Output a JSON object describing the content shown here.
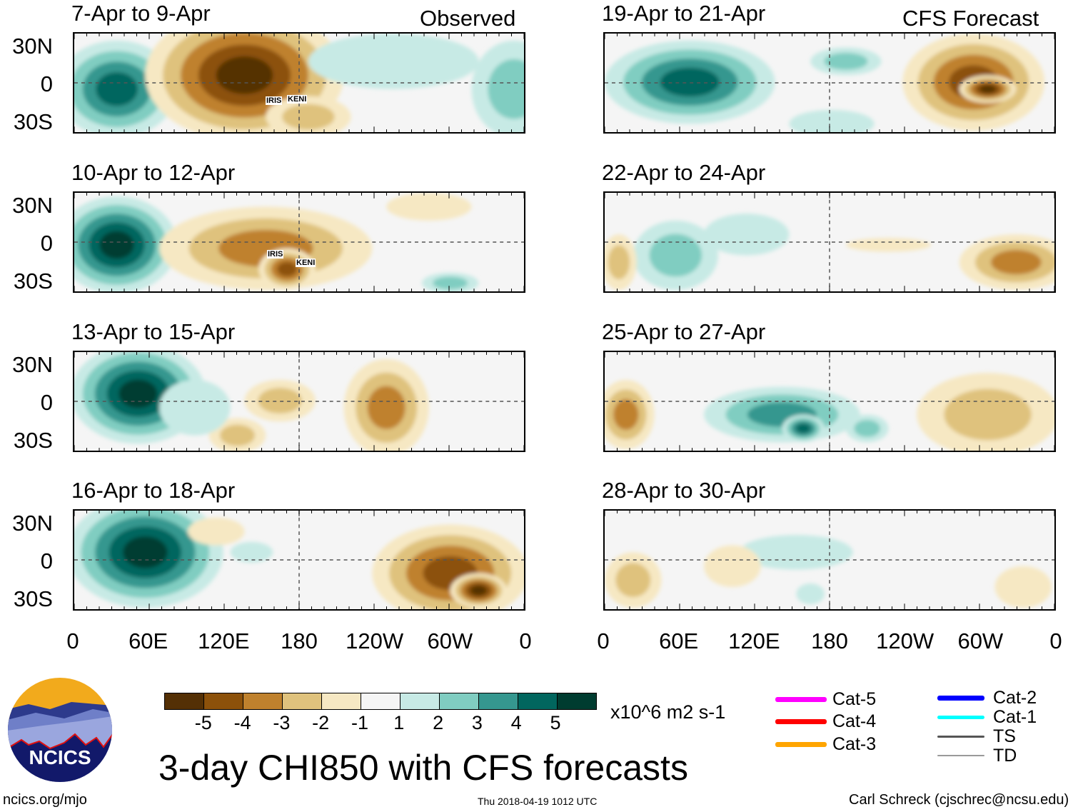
{
  "figure": {
    "title": "3-day CHI850 with CFS forecasts",
    "left_tag": "Observed",
    "right_tag": "CFS Forecast",
    "footer_left": "ncics.org/mjo",
    "footer_center": "Thu 2018-04-19 1012 UTC",
    "footer_right": "Carl Schreck (cjschrec@ncsu.edu)",
    "logo_text": "NCICS"
  },
  "lat_labels": [
    "30N",
    "0",
    "30S"
  ],
  "lon_labels": [
    "0",
    "60E",
    "120E",
    "180",
    "120W",
    "60W",
    "0"
  ],
  "panels_left": [
    {
      "title": "7-Apr to 9-Apr",
      "storms": [
        "IRIS",
        "KENI"
      ]
    },
    {
      "title": "10-Apr to 12-Apr",
      "storms": [
        "IRIS",
        "KENI"
      ]
    },
    {
      "title": "13-Apr to 15-Apr",
      "storms": []
    },
    {
      "title": "16-Apr to 18-Apr",
      "storms": []
    }
  ],
  "panels_right": [
    {
      "title": "19-Apr to 21-Apr"
    },
    {
      "title": "22-Apr to 24-Apr"
    },
    {
      "title": "25-Apr to 27-Apr"
    },
    {
      "title": "28-Apr to 30-Apr"
    }
  ],
  "colorbar": {
    "units": "x10^6 m2 s-1",
    "labels": [
      "-5",
      "-4",
      "-3",
      "-2",
      "-1",
      "1",
      "2",
      "3",
      "4",
      "5"
    ],
    "colors": [
      "#543005",
      "#8c510a",
      "#bf812d",
      "#dfc27d",
      "#f6e8c3",
      "#f5f5f5",
      "#c7eae5",
      "#80cdc1",
      "#35978f",
      "#01665e",
      "#003c30"
    ]
  },
  "legend": [
    {
      "label": "Cat-5",
      "color": "#ff00ff"
    },
    {
      "label": "Cat-4",
      "color": "#ff0000"
    },
    {
      "label": "Cat-3",
      "color": "#ffa500"
    },
    {
      "label": "Cat-2",
      "color": "#0000ff"
    },
    {
      "label": "Cat-1",
      "color": "#00ffff"
    },
    {
      "label": "TS",
      "color": "#555555"
    },
    {
      "label": "TD",
      "color": "#999999"
    }
  ]
}
